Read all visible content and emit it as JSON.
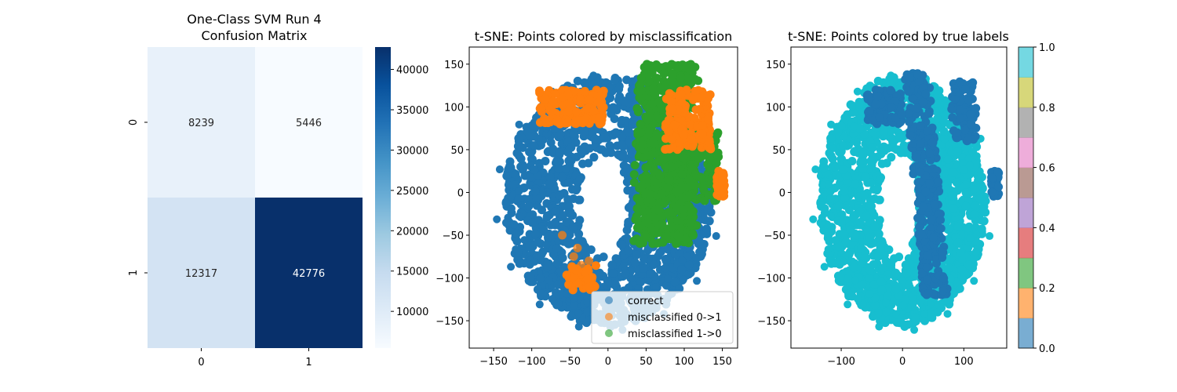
{
  "chart_data": [
    {
      "type": "heatmap",
      "title": "One-Class SVM Run 4\nConfusion Matrix",
      "x_tick_labels": [
        "0",
        "1"
      ],
      "y_tick_labels": [
        "0",
        "1"
      ],
      "matrix": [
        [
          8239,
          5446
        ],
        [
          12317,
          42776
        ]
      ],
      "colormap": "Blues",
      "colorbar_range": [
        5446,
        42776
      ],
      "colorbar_ticks": [
        10000,
        15000,
        20000,
        25000,
        30000,
        35000,
        40000
      ]
    },
    {
      "type": "scatter",
      "title": "t-SNE: Points colored by misclassification",
      "xlim": [
        -182,
        170
      ],
      "ylim": [
        -182,
        170
      ],
      "x_ticks": [
        -150,
        -100,
        -50,
        0,
        50,
        100,
        150
      ],
      "y_ticks": [
        -150,
        -100,
        -50,
        0,
        50,
        100,
        150
      ],
      "legend_position": "lower-right",
      "series": [
        {
          "name": "correct",
          "color": "#1f77b4"
        },
        {
          "name": "misclassified 0->1",
          "color": "#ff7f0e"
        },
        {
          "name": "misclassified 1->0",
          "color": "#2ca02c"
        }
      ]
    },
    {
      "type": "scatter",
      "title": "t-SNE: Points colored by true labels",
      "xlim": [
        -182,
        170
      ],
      "ylim": [
        -182,
        170
      ],
      "x_ticks": [
        -100,
        0,
        100
      ],
      "y_ticks": [
        -150,
        -100,
        -50,
        0,
        50,
        100,
        150
      ],
      "colormap": "tab10",
      "colorbar_range": [
        0,
        1
      ],
      "colorbar_ticks": [
        "0.0",
        "0.2",
        "0.4",
        "0.6",
        "0.8",
        "1.0"
      ],
      "series": [
        {
          "label": 0,
          "color": "#1f77b4"
        },
        {
          "label": 1,
          "color": "#17becf"
        }
      ]
    }
  ]
}
